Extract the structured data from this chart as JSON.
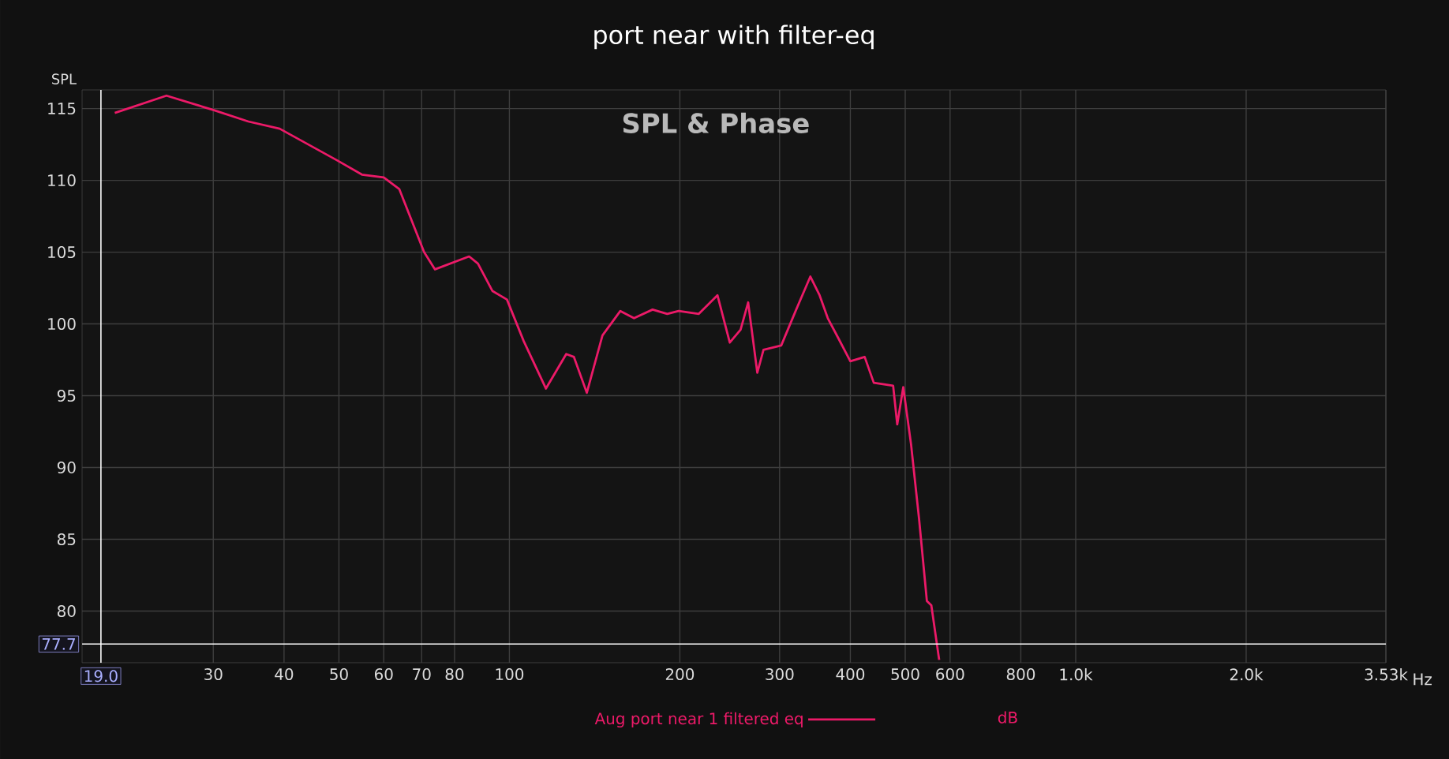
{
  "chart_data": {
    "type": "line",
    "title": "port near with filter-eq",
    "ylabel": "SPL",
    "annotations": [
      "SPL & Phase",
      "dB"
    ],
    "log": "x",
    "grid": true,
    "legend": "bottom",
    "marker": "none",
    "line_style": "solid",
    "xlim": [
      17.6,
      3530
    ],
    "ylim": [
      76.4,
      116.3
    ],
    "xticks": [
      30,
      40,
      50,
      60,
      70,
      80,
      100,
      200,
      300,
      400,
      500,
      600,
      800,
      {
        "value": 1000,
        "label": "1.0k"
      },
      {
        "value": 2000,
        "label": "2.0k"
      },
      {
        "value": 3530,
        "label": "3.53k"
      }
    ],
    "xlabel": "Hz",
    "yticks": [
      80,
      85,
      90,
      95,
      100,
      105,
      110,
      115
    ],
    "ref_lines": [
      {
        "axis": "x",
        "value": 19.0,
        "label": "19.0",
        "color": "#ffffff"
      },
      {
        "axis": "y",
        "value": 77.7,
        "label": "77.7",
        "color": "#ffffff"
      }
    ],
    "series": [
      {
        "name": "Aug port near 1 filtered eq",
        "color": "#ec1a68",
        "x": [
          20.1,
          24.8,
          30,
          34.6,
          39.3,
          49.6,
          54.9,
          60,
          63.9,
          70.7,
          73.9,
          84.9,
          88,
          93.3,
          99,
          106,
          116,
          126,
          130,
          137,
          146,
          157,
          166,
          179,
          190,
          199,
          216,
          233,
          245,
          256,
          264,
          274,
          281,
          302,
          321,
          340,
          353,
          365,
          381,
          400,
          424,
          440,
          476,
          484,
          496,
          512,
          529,
          546,
          556,
          574
        ],
        "values": [
          114.7,
          115.9,
          114.9,
          114.1,
          113.6,
          111.4,
          110.4,
          110.2,
          109.4,
          105.0,
          103.8,
          104.7,
          104.2,
          102.3,
          101.7,
          98.8,
          95.5,
          97.9,
          97.7,
          95.2,
          99.2,
          100.9,
          100.4,
          101.0,
          100.7,
          100.9,
          100.7,
          102.0,
          98.7,
          99.6,
          101.5,
          96.6,
          98.2,
          98.5,
          101.0,
          103.3,
          102.0,
          100.4,
          99.0,
          97.4,
          97.7,
          95.9,
          95.7,
          93.0,
          95.6,
          91.6,
          86.4,
          80.7,
          80.4,
          76.6
        ]
      }
    ]
  }
}
